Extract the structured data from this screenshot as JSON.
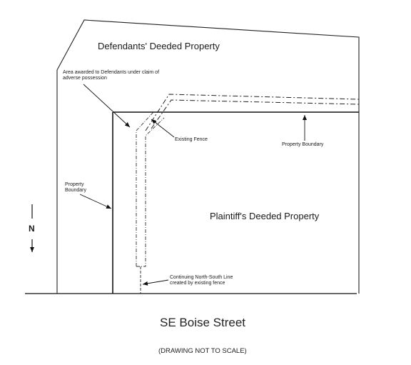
{
  "labels": {
    "defendants_property": "Defendants' Deeded Property",
    "area_awarded_line1": "Area awarded to Defendants under claim of",
    "area_awarded_line2": "adverse possession",
    "existing_fence": "Existing Fence",
    "property_boundary_top": "Property Boundary",
    "property_boundary_left_line1": "Property",
    "property_boundary_left_line2": "Boundary",
    "plaintiffs_property": "Plaintiff's Deeded Property",
    "north_letter": "N",
    "continuing_line1": "Continuing North-South Line",
    "continuing_line2": "created by existing fence",
    "street": "SE Boise Street",
    "scale_note": "(DRAWING NOT TO SCALE)"
  }
}
